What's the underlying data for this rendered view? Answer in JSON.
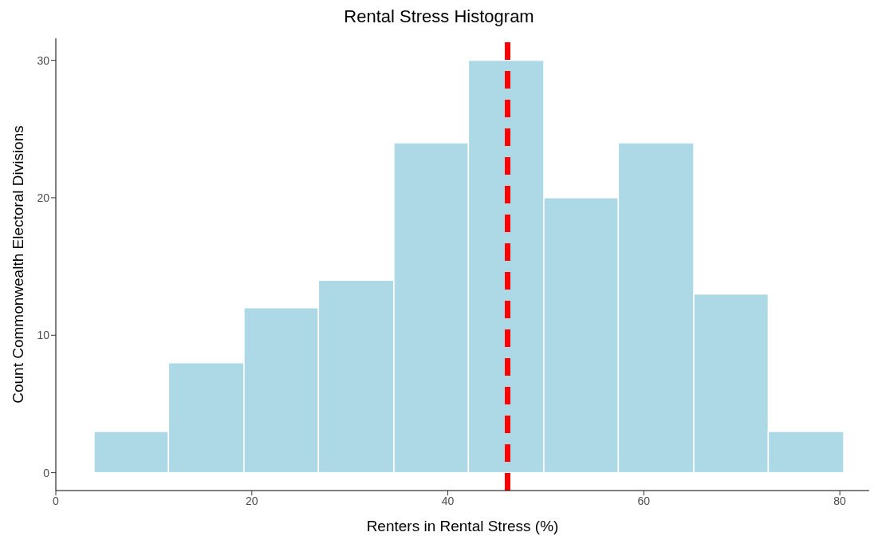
{
  "chart_data": {
    "type": "histogram",
    "title": "Rental Stress Histogram",
    "xlabel": "Renters in Rental Stress (%)",
    "ylabel": "Count Commonwealth Electoral Divisions",
    "bins": [
      3.9,
      11.5,
      19.2,
      26.8,
      34.5,
      42.1,
      49.8,
      57.4,
      65.1,
      72.7,
      80.4
    ],
    "values": [
      3,
      8,
      12,
      14,
      24,
      30,
      20,
      24,
      13,
      3
    ],
    "color": "#add8e6",
    "xlim": [
      0,
      83
    ],
    "xticks": [
      0,
      20,
      40,
      60,
      80
    ],
    "ylim": [
      -1.3,
      31.6
    ],
    "yticks": [
      0,
      10,
      20,
      30
    ],
    "ref_lines": [
      {
        "axis": "x",
        "value": 46.1,
        "color": "#ff0000",
        "line_style": "dashed"
      }
    ],
    "grid": false
  }
}
